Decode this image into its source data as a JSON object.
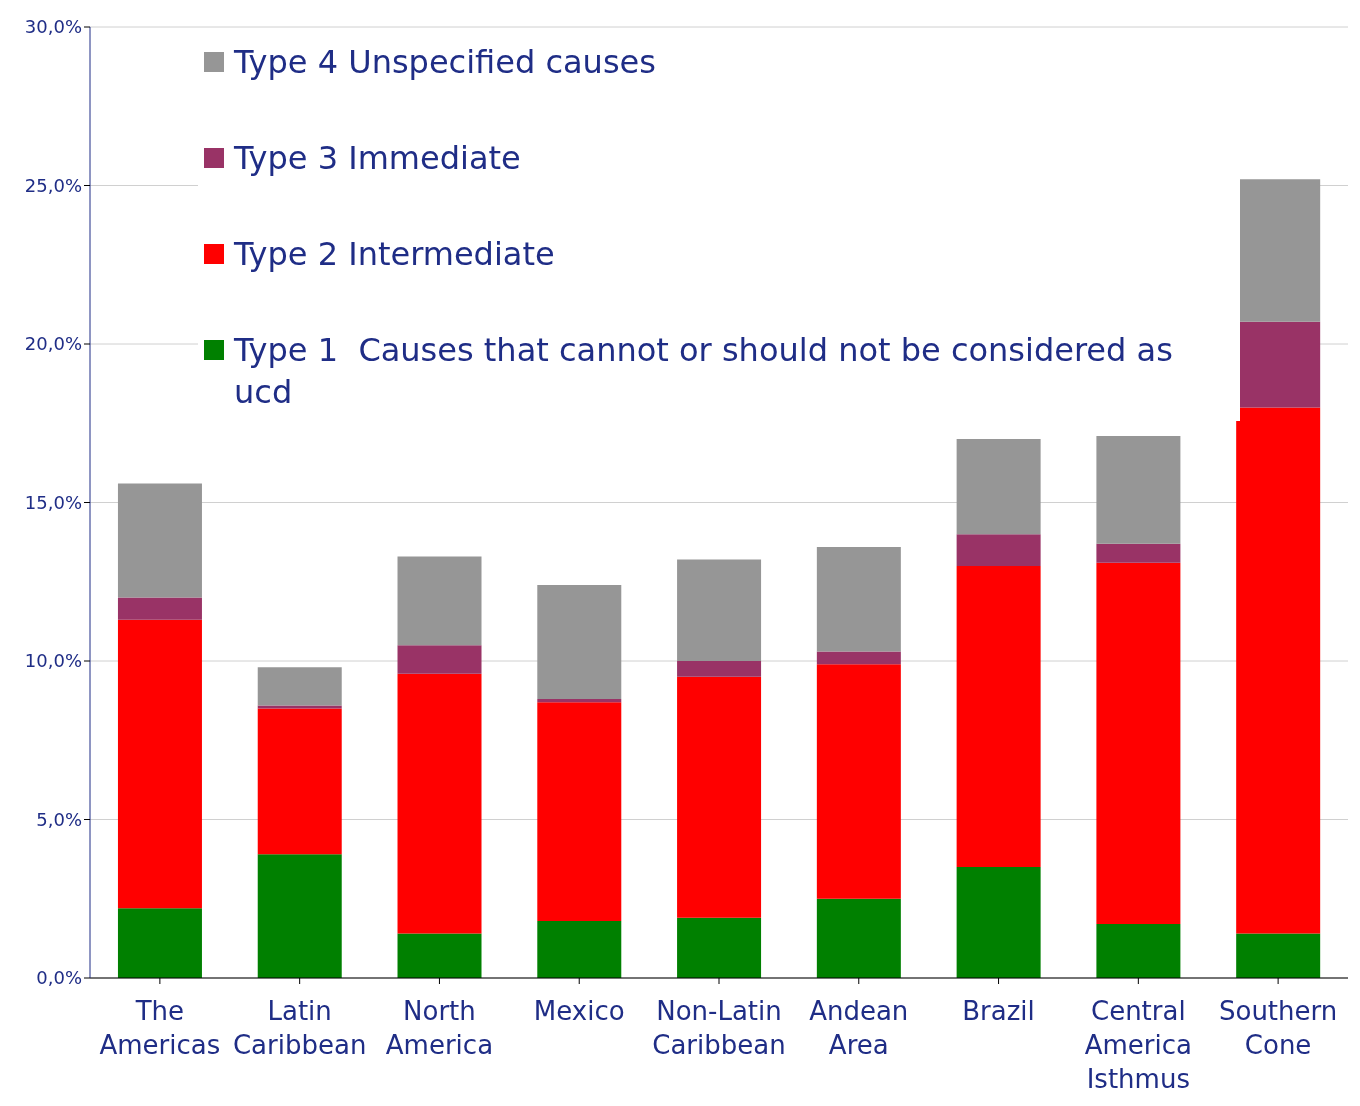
{
  "chart_data": {
    "type": "bar",
    "stacked": true,
    "categories": [
      "The Americas",
      "Latin Caribbean",
      "North America",
      "Mexico",
      "Non-Latin Caribbean",
      "Andean Area",
      "Brazil",
      "Central America Isthmus",
      "Southern Cone"
    ],
    "series": [
      {
        "name": "Type 1  Causes that cannot or should not be considered as ucd",
        "color": "#008000",
        "values": [
          2.2,
          3.9,
          1.4,
          1.8,
          1.9,
          2.5,
          3.5,
          1.7,
          1.4
        ]
      },
      {
        "name": "Type 2 Intermediate",
        "color": "#ff0000",
        "values": [
          9.1,
          4.6,
          8.2,
          6.9,
          7.6,
          7.4,
          9.5,
          11.4,
          16.6
        ]
      },
      {
        "name": "Type 3 Immediate",
        "color": "#993366",
        "values": [
          0.7,
          0.1,
          0.9,
          0.1,
          0.5,
          0.4,
          1.0,
          0.6,
          2.7
        ]
      },
      {
        "name": "Type 4 Unspecified causes",
        "color": "#969696",
        "values": [
          3.6,
          1.2,
          2.8,
          3.6,
          3.2,
          3.3,
          3.0,
          3.4,
          4.5
        ]
      }
    ],
    "ylim": [
      0,
      30
    ],
    "yticks": [
      {
        "value": 0,
        "label": "0,0%"
      },
      {
        "value": 5,
        "label": "5,0%"
      },
      {
        "value": 10,
        "label": "10,0%"
      },
      {
        "value": 15,
        "label": "15,0%"
      },
      {
        "value": 20,
        "label": "20,0%"
      },
      {
        "value": 25,
        "label": "25,0%"
      },
      {
        "value": 30,
        "label": "30,0%"
      }
    ],
    "grid": "y",
    "legend": "top left"
  }
}
